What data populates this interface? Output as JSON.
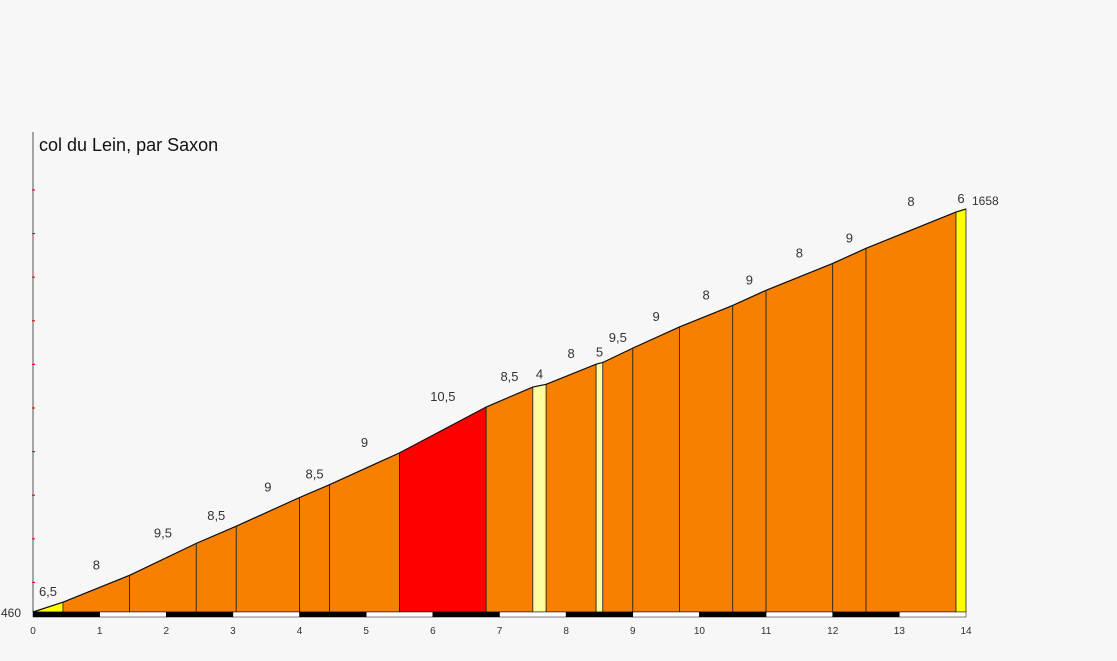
{
  "chart_data": {
    "type": "area",
    "title": "col du Lein, par Saxon",
    "xlabel": "",
    "ylabel": "",
    "xlim": [
      0,
      14
    ],
    "ylim": [
      460,
      1658
    ],
    "start_altitude": 460,
    "end_altitude": 1658,
    "start_altitude_label": "460",
    "end_altitude_label": "1658",
    "x_ticks": [
      "0",
      "1",
      "2",
      "3",
      "4",
      "5",
      "6",
      "7",
      "8",
      "9",
      "10",
      "11",
      "12",
      "13",
      "14"
    ],
    "segments": [
      {
        "from": 0,
        "to": 0.45,
        "grade": 6.5,
        "label": "6,5"
      },
      {
        "from": 0.45,
        "to": 1.45,
        "grade": 8,
        "label": "8"
      },
      {
        "from": 1.45,
        "to": 2.45,
        "grade": 9.5,
        "label": "9,5"
      },
      {
        "from": 2.45,
        "to": 3.05,
        "grade": 8.5,
        "label": "8,5"
      },
      {
        "from": 3.05,
        "to": 4.0,
        "grade": 9,
        "label": "9"
      },
      {
        "from": 4.0,
        "to": 4.45,
        "grade": 8.5,
        "label": "8,5"
      },
      {
        "from": 4.45,
        "to": 5.5,
        "grade": 9,
        "label": "9"
      },
      {
        "from": 5.5,
        "to": 6.8,
        "grade": 10.5,
        "label": "10,5"
      },
      {
        "from": 6.8,
        "to": 7.5,
        "grade": 8.5,
        "label": "8,5"
      },
      {
        "from": 7.5,
        "to": 7.7,
        "grade": 4,
        "label": "4"
      },
      {
        "from": 7.7,
        "to": 8.45,
        "grade": 8,
        "label": "8"
      },
      {
        "from": 8.45,
        "to": 8.55,
        "grade": 5,
        "label": "5"
      },
      {
        "from": 8.55,
        "to": 9.0,
        "grade": 9.5,
        "label": "9,5"
      },
      {
        "from": 9.0,
        "to": 9.7,
        "grade": 9,
        "label": "9"
      },
      {
        "from": 9.7,
        "to": 10.5,
        "grade": 8,
        "label": "8"
      },
      {
        "from": 10.5,
        "to": 11.0,
        "grade": 9,
        "label": "9"
      },
      {
        "from": 11.0,
        "to": 12.0,
        "grade": 8,
        "label": "8"
      },
      {
        "from": 12.0,
        "to": 12.5,
        "grade": 9,
        "label": "9"
      },
      {
        "from": 12.5,
        "to": 13.85,
        "grade": 8,
        "label": "8"
      },
      {
        "from": 13.85,
        "to": 14,
        "grade": 6,
        "label": "6"
      }
    ],
    "colors": {
      "easy": "#ffffa0",
      "moderate": "#ffff00",
      "hard": "#f88000",
      "very_hard": "#ff0000"
    }
  }
}
